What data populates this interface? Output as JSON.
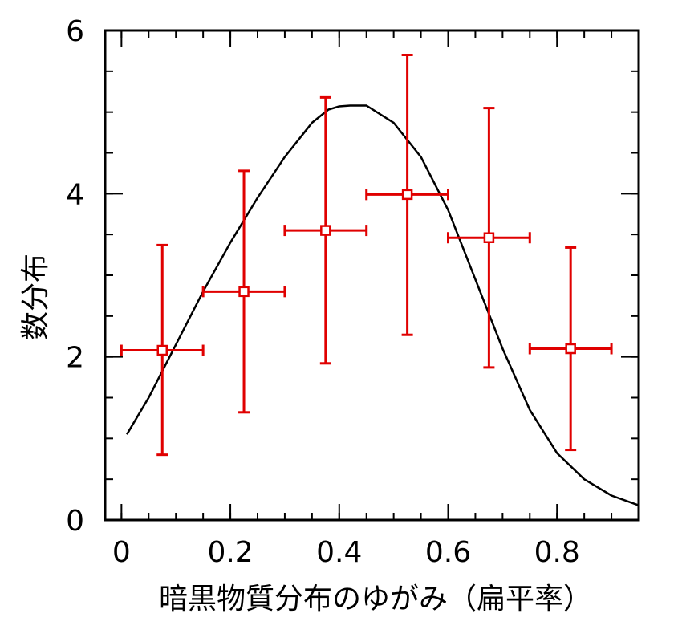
{
  "chart_data": {
    "type": "scatter",
    "xlabel": "暗黒物質分布のゆがみ（扁平率）",
    "ylabel": "数分布",
    "xlim": [
      -0.03,
      0.95
    ],
    "ylim": [
      0,
      6
    ],
    "x_ticks": [
      {
        "value": 0,
        "label": "0"
      },
      {
        "value": 0.2,
        "label": "0.2"
      },
      {
        "value": 0.4,
        "label": "0.4"
      },
      {
        "value": 0.6,
        "label": "0.6"
      },
      {
        "value": 0.8,
        "label": "0.8"
      }
    ],
    "y_ticks": [
      {
        "value": 0,
        "label": "0"
      },
      {
        "value": 2,
        "label": "2"
      },
      {
        "value": 4,
        "label": "4"
      },
      {
        "value": 6,
        "label": "6"
      }
    ],
    "x_minor_step": 0.05,
    "y_minor_step": 0.5,
    "grid": false,
    "series": [
      {
        "kind": "points_with_error_bars",
        "color": "#e00000",
        "marker": "open-square",
        "points": [
          {
            "x": 0.075,
            "y": 2.08,
            "x_err": 0.075,
            "y_low": 0.8,
            "y_high": 3.37
          },
          {
            "x": 0.225,
            "y": 2.8,
            "x_err": 0.075,
            "y_low": 1.32,
            "y_high": 4.28
          },
          {
            "x": 0.375,
            "y": 3.55,
            "x_err": 0.075,
            "y_low": 1.92,
            "y_high": 5.18
          },
          {
            "x": 0.525,
            "y": 3.99,
            "x_err": 0.075,
            "y_low": 2.27,
            "y_high": 5.7
          },
          {
            "x": 0.675,
            "y": 3.46,
            "x_err": 0.075,
            "y_low": 1.87,
            "y_high": 5.05
          },
          {
            "x": 0.825,
            "y": 2.1,
            "x_err": 0.075,
            "y_low": 0.86,
            "y_high": 3.34
          }
        ]
      },
      {
        "kind": "curve",
        "color": "#000000",
        "x": [
          0.01,
          0.05,
          0.1,
          0.15,
          0.2,
          0.25,
          0.3,
          0.35,
          0.38,
          0.4,
          0.42,
          0.45,
          0.5,
          0.55,
          0.6,
          0.65,
          0.7,
          0.75,
          0.8,
          0.85,
          0.9,
          0.95
        ],
        "y": [
          1.05,
          1.5,
          2.15,
          2.8,
          3.4,
          3.95,
          4.45,
          4.87,
          5.03,
          5.07,
          5.08,
          5.08,
          4.87,
          4.45,
          3.8,
          2.95,
          2.1,
          1.35,
          0.82,
          0.5,
          0.3,
          0.18
        ]
      }
    ]
  }
}
